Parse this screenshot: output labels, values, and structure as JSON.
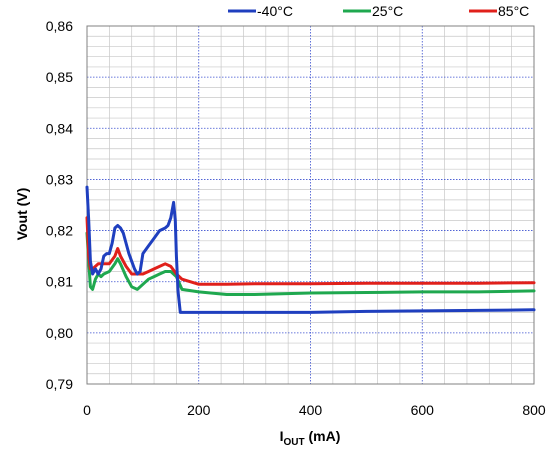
{
  "chart_data": {
    "type": "line",
    "xlabel_main": "I",
    "xlabel_sub": "OUT",
    "xlabel_unit": " (mA)",
    "ylabel": "Vout (V)",
    "xlim": [
      0,
      800
    ],
    "ylim": [
      0.79,
      0.86
    ],
    "x_ticks": [
      0,
      200,
      400,
      600,
      800
    ],
    "x_tick_labels": [
      "0",
      "200",
      "400",
      "600",
      "800"
    ],
    "y_ticks": [
      0.79,
      0.8,
      0.81,
      0.82,
      0.83,
      0.84,
      0.85,
      0.86
    ],
    "y_tick_labels": [
      "0,79",
      "0,80",
      "0,81",
      "0,82",
      "0,83",
      "0,84",
      "0,85",
      "0,86"
    ],
    "x_minor_step": 40,
    "y_minor_step": 0.002,
    "grid": true,
    "legend_position": "top",
    "series": [
      {
        "name": "-40°C",
        "color": "#1f3fbf",
        "x": [
          0,
          3,
          6,
          10,
          15,
          20,
          25,
          30,
          35,
          40,
          45,
          50,
          55,
          60,
          65,
          70,
          75,
          80,
          85,
          90,
          95,
          100,
          110,
          120,
          130,
          140,
          145,
          150,
          155,
          158,
          160,
          163,
          167,
          200,
          230,
          260,
          300,
          400,
          500,
          600,
          700,
          800
        ],
        "y": [
          0.8285,
          0.822,
          0.814,
          0.8115,
          0.8125,
          0.8115,
          0.8125,
          0.815,
          0.8155,
          0.8155,
          0.8175,
          0.8205,
          0.821,
          0.8205,
          0.8195,
          0.8175,
          0.8155,
          0.814,
          0.8125,
          0.8115,
          0.812,
          0.8155,
          0.817,
          0.8185,
          0.82,
          0.8205,
          0.821,
          0.8225,
          0.8255,
          0.822,
          0.815,
          0.808,
          0.804,
          0.804,
          0.804,
          0.804,
          0.804,
          0.804,
          0.8042,
          0.8043,
          0.8044,
          0.8045
        ]
      },
      {
        "name": "25°C",
        "color": "#1fa84f",
        "x": [
          0,
          3,
          6,
          10,
          15,
          20,
          25,
          30,
          40,
          50,
          55,
          60,
          70,
          80,
          90,
          100,
          110,
          120,
          130,
          140,
          150,
          160,
          170,
          200,
          250,
          300,
          400,
          500,
          600,
          700,
          800
        ],
        "y": [
          0.8195,
          0.814,
          0.809,
          0.8085,
          0.8105,
          0.8115,
          0.811,
          0.8115,
          0.812,
          0.8135,
          0.8145,
          0.8135,
          0.811,
          0.809,
          0.8085,
          0.8095,
          0.8105,
          0.811,
          0.8115,
          0.812,
          0.812,
          0.811,
          0.8085,
          0.808,
          0.8075,
          0.8075,
          0.8078,
          0.8079,
          0.808,
          0.808,
          0.8082
        ]
      },
      {
        "name": "85°C",
        "color": "#e0201b",
        "x": [
          0,
          3,
          6,
          10,
          15,
          20,
          25,
          30,
          40,
          50,
          55,
          60,
          70,
          80,
          90,
          100,
          110,
          120,
          130,
          140,
          150,
          160,
          170,
          200,
          250,
          300,
          400,
          500,
          600,
          700,
          800
        ],
        "y": [
          0.8225,
          0.815,
          0.8125,
          0.8125,
          0.813,
          0.8135,
          0.8135,
          0.8135,
          0.8135,
          0.815,
          0.8165,
          0.815,
          0.813,
          0.8115,
          0.8115,
          0.8115,
          0.812,
          0.8125,
          0.813,
          0.8135,
          0.813,
          0.8115,
          0.8105,
          0.8095,
          0.8095,
          0.8096,
          0.8096,
          0.8097,
          0.8097,
          0.8097,
          0.8098
        ]
      }
    ]
  }
}
